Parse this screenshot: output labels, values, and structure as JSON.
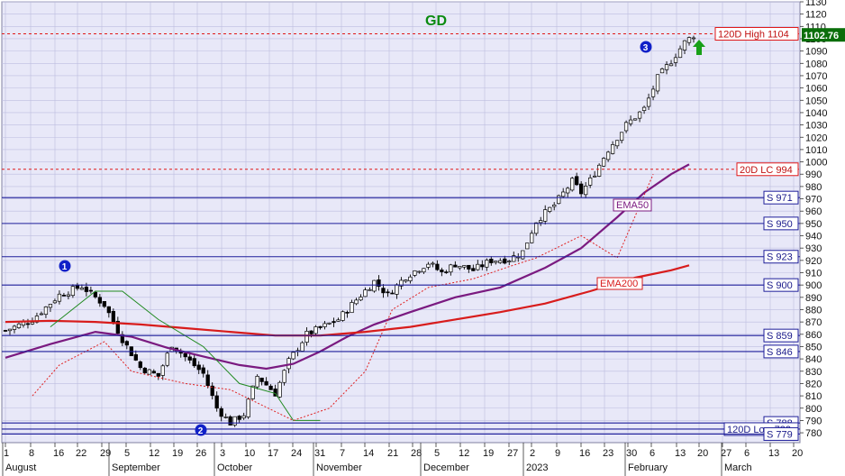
{
  "chart_data": {
    "type": "candlestick",
    "title": "GD",
    "y_range": [
      772,
      1130
    ],
    "y_ticks": [
      780,
      790,
      800,
      810,
      820,
      830,
      840,
      850,
      860,
      870,
      880,
      890,
      900,
      910,
      920,
      930,
      940,
      950,
      960,
      970,
      980,
      990,
      1000,
      1010,
      1020,
      1030,
      1040,
      1050,
      1060,
      1070,
      1080,
      1090,
      1100,
      1110,
      1120,
      1130
    ],
    "grid": true,
    "x_day_labels": [
      "1",
      "8",
      "16",
      "22",
      "29",
      "5",
      "12",
      "19",
      "26",
      "3",
      "10",
      "17",
      "24",
      "31",
      "7",
      "14",
      "21",
      "28",
      "5",
      "12",
      "19",
      "27",
      "2",
      "9",
      "16",
      "23",
      "30",
      "6",
      "13",
      "20",
      "27",
      "6",
      "13",
      "20"
    ],
    "x_month_labels": [
      "August",
      "September",
      "October",
      "November",
      "December",
      "2023",
      "February",
      "March"
    ],
    "last_price": {
      "label": "1102.76",
      "value": 1102.76
    },
    "levels": [
      {
        "label": "120D High 1104",
        "value": 1104,
        "kind": "resistance"
      },
      {
        "label": "20D LC 994",
        "value": 994,
        "kind": "resistance"
      },
      {
        "label": "S 971",
        "value": 971,
        "kind": "support"
      },
      {
        "label": "S 950",
        "value": 950,
        "kind": "support"
      },
      {
        "label": "S 923",
        "value": 923,
        "kind": "support"
      },
      {
        "label": "S 900",
        "value": 900,
        "kind": "support"
      },
      {
        "label": "S 859",
        "value": 859,
        "kind": "support"
      },
      {
        "label": "S 846",
        "value": 846,
        "kind": "support"
      },
      {
        "label": "S 788",
        "value": 788,
        "kind": "support"
      },
      {
        "label": "120D Low 783",
        "value": 783,
        "kind": "support"
      },
      {
        "label": "S 779",
        "value": 779,
        "kind": "support"
      }
    ],
    "moving_average_labels": {
      "ema50": "EMA50",
      "ema200": "EMA200"
    },
    "wave_labels": [
      {
        "label": "1",
        "value": 898
      },
      {
        "label": "2",
        "value": 776
      },
      {
        "label": "3",
        "value": 1097
      }
    ],
    "colors": {
      "background": "#e8e8f8",
      "grid": "#bdbde0",
      "level_line": "#1e1e9a",
      "resistance_line": "#e01818",
      "ema50": "#7a1a80",
      "ema200": "#d81c1c",
      "stop_line": "#e02020",
      "stop_line_green": "#208a20",
      "up_candle": "#ffffff",
      "down_candle": "#000000",
      "wave_badge": "#1020c8",
      "title": "#0a8a10",
      "arrow": "#18a018",
      "last_price_bg": "#0a6e0a"
    }
  }
}
